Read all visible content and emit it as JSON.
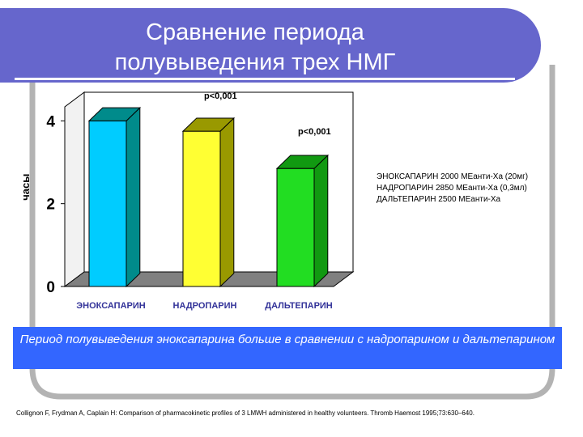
{
  "slide": {
    "title_line1": "Сравнение периода",
    "title_line2": "полувыведения трех НМГ",
    "legend": [
      "ЭНОКСАПАРИН 2000 МЕанти-Ха (20мг)",
      "НАДРОПАРИН 2850 МЕанти-Ха (0,3мл)",
      "ДАЛЬТЕПАРИН 2500 МЕанти-Ха"
    ],
    "conclusion": "Период полувыведения эноксапарина больше в сравнении с  надропарином и дальтепарином",
    "citation": "Collignon F, Frydman A, Caplain H: Comparison of pharmacokinetic profiles of 3 LMWH administered in healthy volunteers. Thromb Haemost 1995;73:630–640."
  },
  "chart_data": {
    "type": "bar",
    "categories": [
      "ЭНОКСАПАРИН",
      "НАДРОПАРИН",
      "ДАЛЬТЕПАРИН"
    ],
    "values": [
      4.0,
      3.75,
      2.85
    ],
    "ylabel": "часы",
    "yticks": [
      0,
      2,
      4
    ],
    "ylim": [
      0,
      4.3
    ],
    "annotations": [
      "p<0,001",
      "p<0,001"
    ],
    "colors": {
      "bar1_front": "#00ccff",
      "bar1_side": "#008b8b",
      "bar2_front": "#ffff33",
      "bar2_side": "#999900",
      "bar3_front": "#22dd22",
      "bar3_side": "#119911",
      "wall": "#ffffff",
      "floor": "#808080",
      "tick_label": "#000000",
      "category_label": "#333399",
      "frame": "#b3b3b3",
      "title_band": "#6666cc",
      "conclusion_band": "#3366ff"
    }
  }
}
